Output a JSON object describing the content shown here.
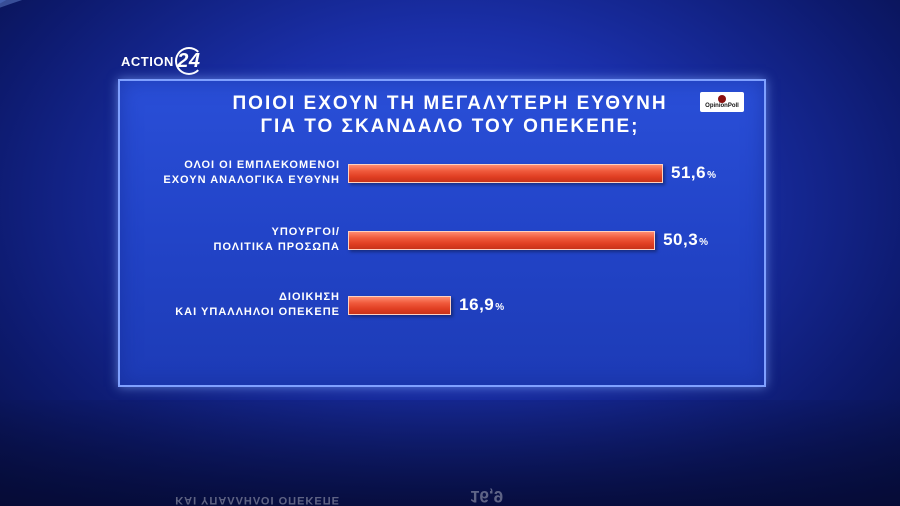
{
  "logo": {
    "word": "ACTION",
    "number": "24"
  },
  "title_line1": "ΠΟΙΟΙ ΕΧΟΥΝ ΤΗ ΜΕΓΑΛΥΤΕΡΗ ΕΥΘΥΝΗ",
  "title_line2": "ΓΙΑ ΤΟ ΣΚΑΝΔΑΛΟ ΤΟΥ ΟΠΕΚΕΠΕ;",
  "source_logo": {
    "text": "OpinionPoll",
    "icon": "opinionpoll-logo-icon"
  },
  "chart_data": {
    "type": "bar",
    "orientation": "horizontal",
    "title": "ΠΟΙΟΙ ΕΧΟΥΝ ΤΗ ΜΕΓΑΛΥΤΕΡΗ ΕΥΘΥΝΗ ΓΙΑ ΤΟ ΣΚΑΝΔΑΛΟ ΤΟΥ ΟΠΕΚΕΠΕ;",
    "categories": [
      [
        "ΟΛΟΙ ΟΙ ΕΜΠΛΕΚΟΜΕΝΟΙ",
        "ΕΧΟΥΝ ΑΝΑΛΟΓΙΚΑ ΕΥΘΥΝΗ"
      ],
      [
        "ΥΠΟΥΡΓΟΙ/",
        "ΠΟΛΙΤΙΚΑ ΠΡΟΣΩΠΑ"
      ],
      [
        "ΔΙΟΙΚΗΣΗ",
        "ΚΑΙ ΥΠΑΛΛΗΛΟΙ ΟΠΕΚΕΠΕ"
      ]
    ],
    "values": [
      51.6,
      50.3,
      16.9
    ],
    "value_labels": [
      "51,6",
      "50,3",
      "16,9"
    ],
    "unit": "%",
    "xlim": [
      0,
      100
    ],
    "bar_color": "#e8482a",
    "grid": false,
    "legend": "none"
  },
  "colors": {
    "background": "#1a2fa8",
    "panel": "#2447cc",
    "panel_border": "#7fa0ff",
    "bar": "#e8482a",
    "text": "#ffffff"
  }
}
